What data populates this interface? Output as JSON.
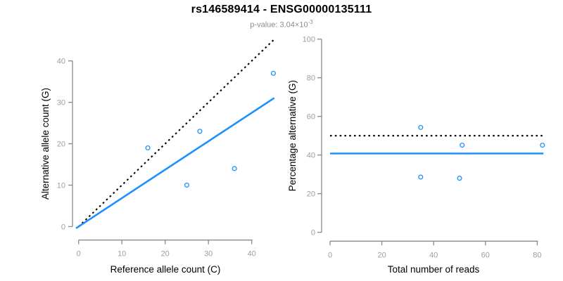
{
  "header": {
    "title": "rs146589414 - ENSG00000135111",
    "subtitle_prefix": "p-value: 3.04×10",
    "subtitle_exponent": "-3"
  },
  "colors": {
    "accent_blue": "#1E90FF",
    "dotted_black": "#000000",
    "axis_gray": "#8a8a8a",
    "tick_label_gray": "#9e9e9e",
    "axis_title_black": "#000000",
    "subtitle_gray": "#8c8c8c"
  },
  "chart_data": [
    {
      "name": "allele-counts-scatter",
      "type": "scatter",
      "xlabel": "Reference allele count (C)",
      "ylabel": "Alternative allele count (G)",
      "xlim": [
        -1.8,
        46.8
      ],
      "ylim": [
        -1.8,
        45.2
      ],
      "xticks": [
        0,
        10,
        20,
        30,
        40
      ],
      "yticks": [
        0,
        10,
        20,
        30,
        40
      ],
      "grid": false,
      "legend": false,
      "points": [
        [
          16,
          19
        ],
        [
          25,
          10
        ],
        [
          28,
          23
        ],
        [
          36,
          14
        ],
        [
          45,
          37
        ]
      ],
      "lines": [
        {
          "name": "expected-heterozygous-identity-line",
          "style": "dotted",
          "color": "#000000",
          "x1": 0,
          "y1": 0,
          "x2": 45.2,
          "y2": 45.2
        },
        {
          "name": "observed-allelic-ratio-line",
          "style": "solid",
          "color": "#1E90FF",
          "x1": -0.6,
          "y1": -0.41,
          "x2": 45.2,
          "y2": 31.05
        }
      ]
    },
    {
      "name": "percentage-vs-reads-scatter",
      "type": "scatter",
      "xlabel": "Total number of reads",
      "ylabel": "Percentage alternative (G)",
      "xlim": [
        0,
        85.5
      ],
      "ylim": [
        0,
        100
      ],
      "xticks": [
        0,
        20,
        40,
        60,
        80
      ],
      "yticks": [
        0,
        20,
        40,
        60,
        80,
        100
      ],
      "grid": false,
      "legend": false,
      "points": [
        [
          35,
          54.3
        ],
        [
          35,
          28.6
        ],
        [
          50,
          28
        ],
        [
          51,
          45.1
        ],
        [
          82,
          45.1
        ]
      ],
      "lines": [
        {
          "name": "expected-50-percent-line",
          "style": "dotted",
          "color": "#000000",
          "x1": 0,
          "y1": 50,
          "x2": 82.4,
          "y2": 50
        },
        {
          "name": "mean-percentage-line",
          "style": "solid",
          "color": "#1E90FF",
          "x1": 0,
          "y1": 40.8,
          "x2": 82.4,
          "y2": 40.8
        }
      ]
    }
  ]
}
